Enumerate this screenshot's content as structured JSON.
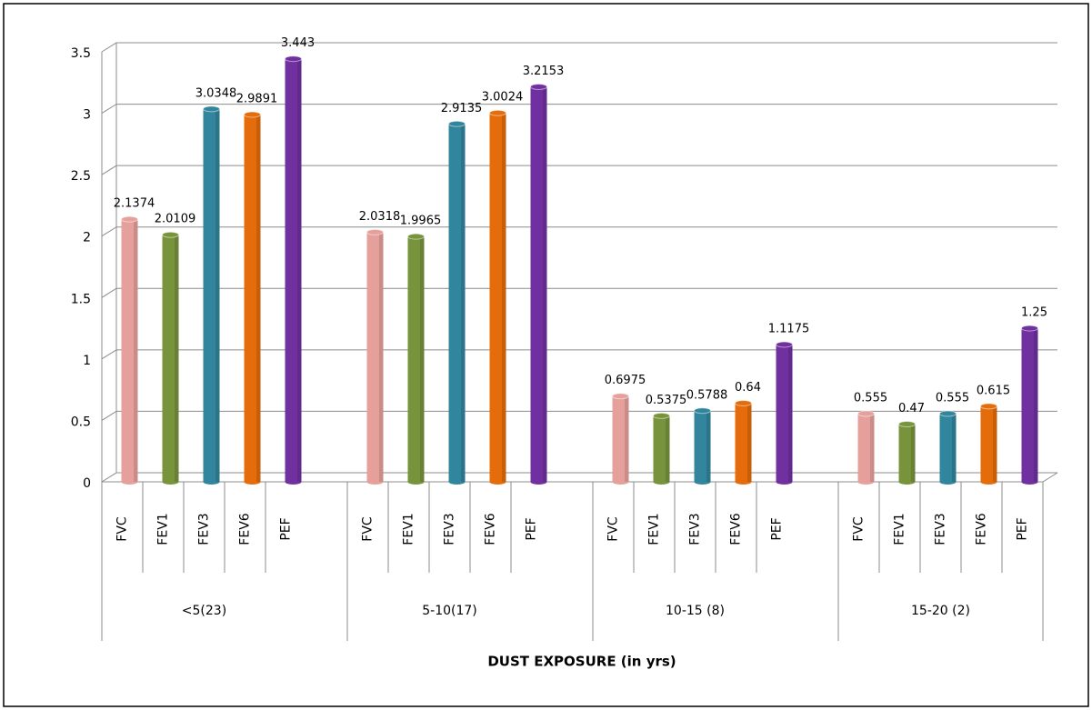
{
  "chart_data": {
    "type": "bar",
    "x_label": "DUST EXPOSURE (in yrs)",
    "categories": [
      "<5(23)",
      "5-10(17)",
      "10-15 (8)",
      "15-20 (2)"
    ],
    "series": [
      {
        "name": "FVC",
        "color": "#e6a09c",
        "values": [
          2.1374,
          2.0318,
          0.6975,
          0.555
        ]
      },
      {
        "name": "FEV1",
        "color": "#77933c",
        "values": [
          2.0109,
          1.9965,
          0.5375,
          0.47
        ]
      },
      {
        "name": "FEV3",
        "color": "#31859c",
        "values": [
          3.0348,
          2.9135,
          0.5788,
          0.555
        ]
      },
      {
        "name": "FEV6",
        "color": "#e46c0a",
        "values": [
          2.9891,
          3.0024,
          0.64,
          0.615
        ]
      },
      {
        "name": "PEF",
        "color": "#7030a0",
        "values": [
          3.443,
          3.2153,
          1.1175,
          1.25
        ]
      }
    ],
    "ylim": [
      0,
      3.5
    ],
    "yticks": [
      0,
      0.5,
      1,
      1.5,
      2,
      2.5,
      3,
      3.5
    ],
    "grid": true
  }
}
